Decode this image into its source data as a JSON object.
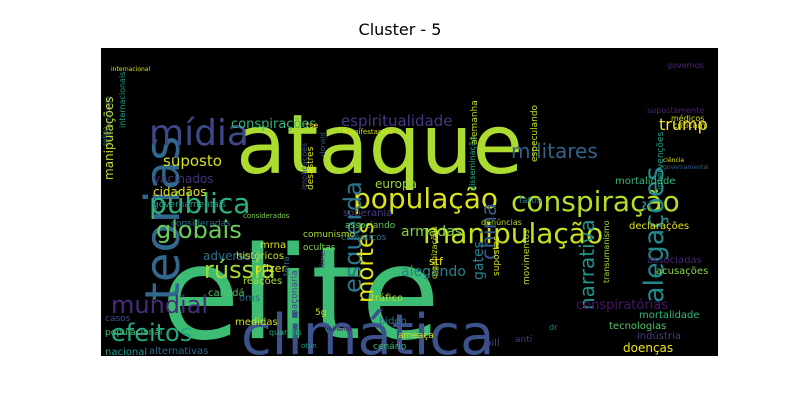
{
  "figure": {
    "title": "Cluster - 5"
  },
  "wordcloud": {
    "background": "#000000",
    "words": [
      {
        "text": "elite",
        "color": "#3dbc74"
      },
      {
        "text": "ataque",
        "color": "#addc30"
      },
      {
        "text": "climática",
        "color": "#3b528b"
      },
      {
        "text": "teorias",
        "color": "#31688e"
      },
      {
        "text": "manipulação",
        "color": "#c8e020"
      },
      {
        "text": "conspiração",
        "color": "#b5de2b"
      },
      {
        "text": "população",
        "color": "#dae319"
      },
      {
        "text": "pública",
        "color": "#2db27d"
      },
      {
        "text": "alegações",
        "color": "#23888e"
      },
      {
        "text": "mídia",
        "color": "#3e4989"
      },
      {
        "text": "globais",
        "color": "#6ccd5a"
      },
      {
        "text": "esquerda",
        "color": "#2a788e"
      },
      {
        "text": "rússia",
        "color": "#a2da37"
      },
      {
        "text": "mundial",
        "color": "#472d7b"
      },
      {
        "text": "efeitos",
        "color": "#22a884"
      },
      {
        "text": "mortes",
        "color": "#dde318"
      },
      {
        "text": "china",
        "color": "#39568c"
      },
      {
        "text": "narrativa",
        "color": "#1f958b"
      },
      {
        "text": "militares",
        "color": "#34618d"
      },
      {
        "text": "trump",
        "color": "#fde725"
      },
      {
        "text": "espiritualidade",
        "color": "#443983"
      },
      {
        "text": "conspirações",
        "color": "#35b779"
      },
      {
        "text": "suposto",
        "color": "#d5e21a"
      },
      {
        "text": "vacinados",
        "color": "#46327e"
      },
      {
        "text": "cidadãos",
        "color": "#e5e419"
      },
      {
        "text": "governamentais",
        "color": "#1e9c89"
      },
      {
        "text": "adversos",
        "color": "#2c728e"
      },
      {
        "text": "armadas",
        "color": "#84d44b"
      },
      {
        "text": "alegando",
        "color": "#25838e"
      },
      {
        "text": "europa",
        "color": "#9bd93c"
      },
      {
        "text": "stf",
        "color": "#fde725"
      },
      {
        "text": "gates",
        "color": "#26828e"
      },
      {
        "text": "conspiratórias",
        "color": "#481769"
      },
      {
        "text": "tecnologias",
        "color": "#52c569"
      },
      {
        "text": "doenças",
        "color": "#f1e51d"
      },
      {
        "text": "indústria",
        "color": "#433e85"
      },
      {
        "text": "mortalidade",
        "color": "#38b977"
      },
      {
        "text": "acusações",
        "color": "#8bd646"
      },
      {
        "text": "associadas",
        "color": "#482475"
      },
      {
        "text": "medidas",
        "color": "#d2e21b"
      },
      {
        "text": "5g",
        "color": "#c2df23"
      },
      {
        "text": "oms",
        "color": "#31688e"
      },
      {
        "text": "pfizer",
        "color": "#e7e419"
      },
      {
        "text": "mrna",
        "color": "#e2e418"
      },
      {
        "text": "históricos",
        "color": "#cae11f"
      },
      {
        "text": "canadá",
        "color": "#52c569"
      },
      {
        "text": "reações",
        "color": "#aadc32"
      },
      {
        "text": "tráfico",
        "color": "#b2dd2d"
      },
      {
        "text": "biden",
        "color": "#2d708e"
      },
      {
        "text": "ameaça",
        "color": "#d8e219"
      },
      {
        "text": "cenário",
        "color": "#3aba76"
      },
      {
        "text": "casos",
        "color": "#3b528b"
      },
      {
        "text": "populacional",
        "color": "#46c06f"
      },
      {
        "text": "quartéis",
        "color": "#2ab07f"
      },
      {
        "text": "nacional",
        "color": "#1f9e89"
      },
      {
        "text": "alternativas",
        "color": "#2f6c8e"
      },
      {
        "text": "bill",
        "color": "#3f4788"
      },
      {
        "text": "anti",
        "color": "#443a83"
      },
      {
        "text": "dr",
        "color": "#24878e"
      },
      {
        "text": "declarações",
        "color": "#e2e418"
      },
      {
        "text": "fatos",
        "color": "#277f8e"
      },
      {
        "text": "denúncias",
        "color": "#b0dd2f"
      },
      {
        "text": "ciência",
        "color": "#e7e419"
      },
      {
        "text": "governamental",
        "color": "#355e8d"
      },
      {
        "text": "climáticos",
        "color": "#2e6e8e"
      },
      {
        "text": "associando",
        "color": "#5ec962"
      },
      {
        "text": "soberania",
        "color": "#433e85"
      },
      {
        "text": "comunismo",
        "color": "#addc30"
      },
      {
        "text": "ocultas",
        "color": "#7ad151"
      },
      {
        "text": "considerados",
        "color": "#7ad151"
      },
      {
        "text": "consideradas",
        "color": "#2d708e"
      },
      {
        "text": "criticam",
        "color": "#dde318"
      },
      {
        "text": "supostamente",
        "color": "#482173"
      },
      {
        "text": "médicos",
        "color": "#d0e11c"
      },
      {
        "text": "governos",
        "color": "#482878"
      },
      {
        "text": "especulando",
        "color": "#c5e021"
      },
      {
        "text": "intervenções",
        "color": "#1fa287"
      },
      {
        "text": "mortalidade",
        "color": "#38b977"
      },
      {
        "text": "disseminação",
        "color": "#25ac82"
      },
      {
        "text": "alemanha",
        "color": "#b8de29"
      },
      {
        "text": "manifestantes",
        "color": "#d5e21a"
      },
      {
        "text": "implicações",
        "color": "#3e4989"
      },
      {
        "text": "desastres",
        "color": "#dae319"
      },
      {
        "text": "donald",
        "color": "#3b528b"
      },
      {
        "text": "tse",
        "color": "#fde725"
      },
      {
        "text": "internacional",
        "color": "#d8e219"
      },
      {
        "text": "internacionais",
        "color": "#1f9e89"
      },
      {
        "text": "humanidade",
        "color": "#3b528b"
      },
      {
        "text": "polícia",
        "color": "#277f8e"
      },
      {
        "text": "manipulações",
        "color": "#c2df23"
      },
      {
        "text": "terra",
        "color": "#2a778e"
      },
      {
        "text": "maçonaria",
        "color": "#404588"
      },
      {
        "text": "filme",
        "color": "#3e4989"
      },
      {
        "text": "organizações",
        "color": "#d2e21b"
      },
      {
        "text": "supostas",
        "color": "#d8e219"
      },
      {
        "text": "movimentos",
        "color": "#addc30"
      },
      {
        "text": "transumanismo",
        "color": "#a5db36"
      },
      {
        "text": "otan",
        "color": "#1f9a8a"
      },
      {
        "text": "iminente",
        "color": "#460b5e"
      }
    ]
  }
}
